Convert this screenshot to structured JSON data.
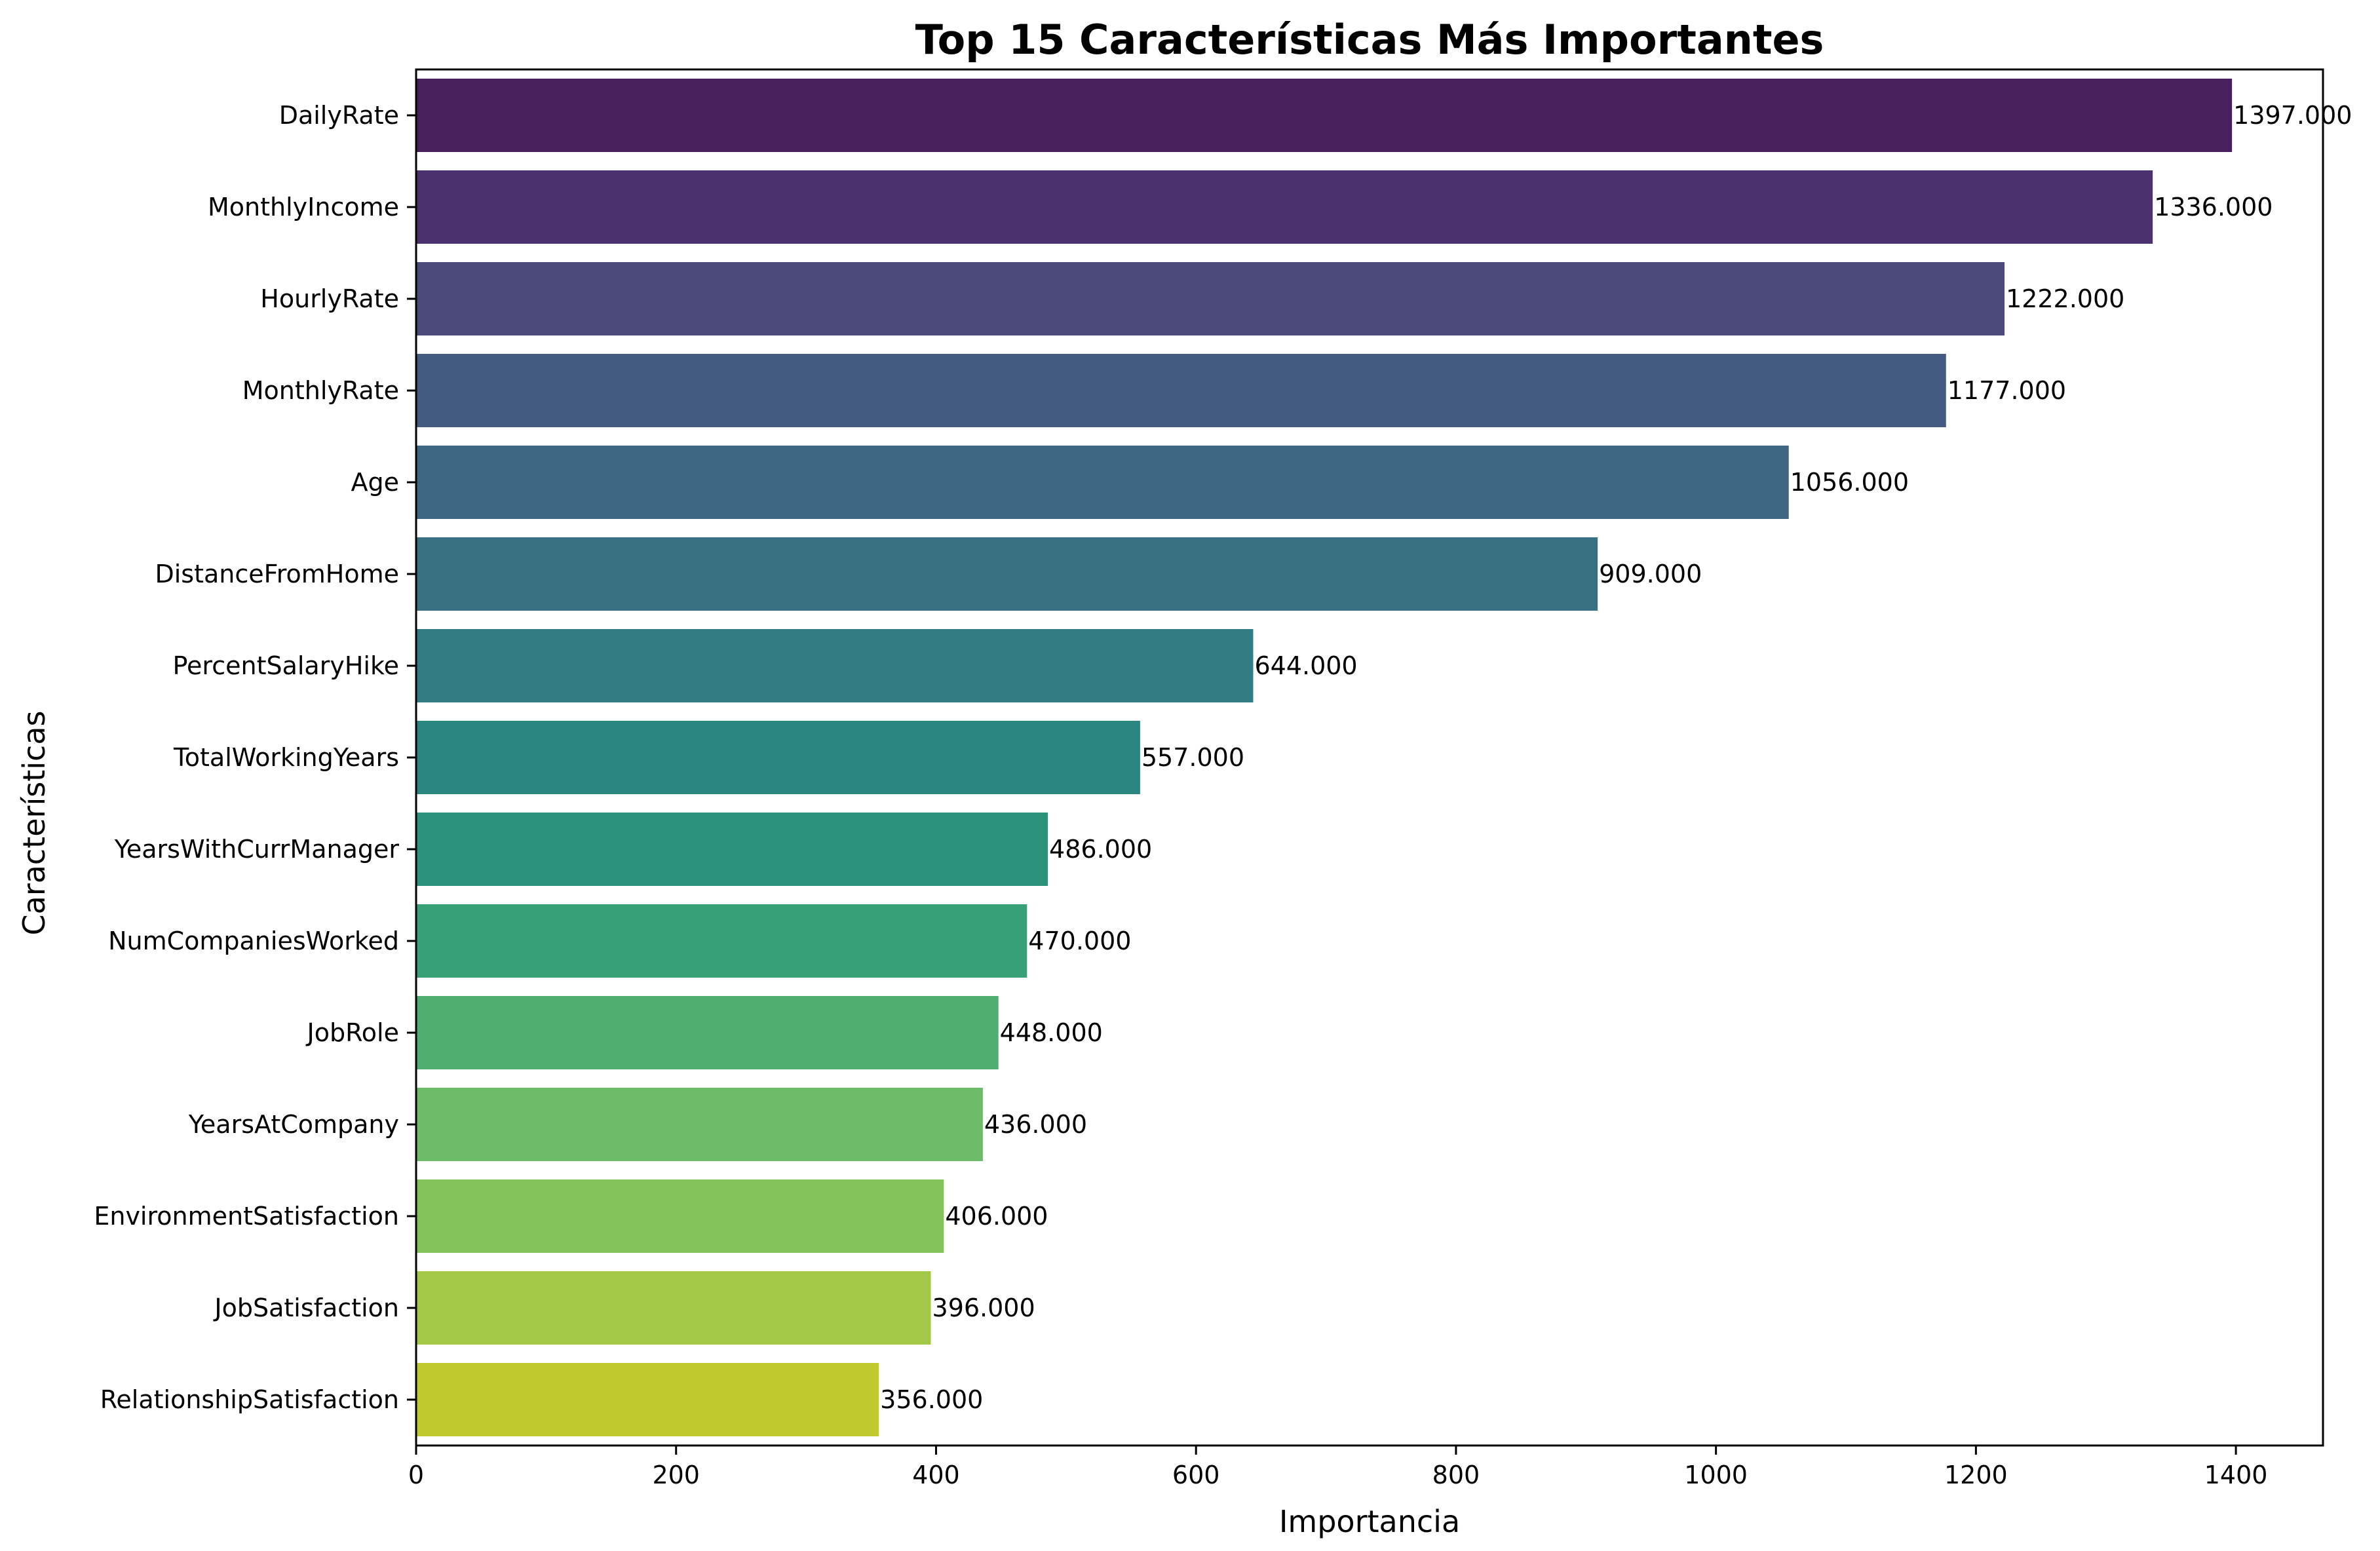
{
  "chart_data": {
    "type": "bar",
    "orientation": "horizontal",
    "title": "Top 15 Características Más Importantes",
    "xlabel": "Importancia",
    "ylabel": "Características",
    "xlim": [
      0,
      1467
    ],
    "xticks": [
      0,
      200,
      400,
      600,
      800,
      1000,
      1200,
      1400
    ],
    "grid": false,
    "categories": [
      "DailyRate",
      "MonthlyIncome",
      "HourlyRate",
      "MonthlyRate",
      "Age",
      "DistanceFromHome",
      "PercentSalaryHike",
      "TotalWorkingYears",
      "YearsWithCurrManager",
      "NumCompaniesWorked",
      "JobRole",
      "YearsAtCompany",
      "EnvironmentSatisfaction",
      "JobSatisfaction",
      "RelationshipSatisfaction"
    ],
    "values": [
      1397,
      1336,
      1222,
      1177,
      1056,
      909,
      644,
      557,
      486,
      470,
      448,
      436,
      406,
      396,
      356
    ],
    "value_labels": [
      "1397.000",
      "1336.000",
      "1222.000",
      "1177.000",
      "1056.000",
      "909.000",
      "644.000",
      "557.000",
      "486.000",
      "470.000",
      "448.000",
      "436.000",
      "406.000",
      "396.000",
      "356.000"
    ],
    "colors": [
      "#47205c",
      "#4b326e",
      "#4b4a7d",
      "#455a80",
      "#3e6582",
      "#387182",
      "#317b82",
      "#2a8580",
      "#2c927c",
      "#37a078",
      "#4eae71",
      "#6cbc6a",
      "#85c25b",
      "#a3c847",
      "#c0ca2e"
    ]
  }
}
